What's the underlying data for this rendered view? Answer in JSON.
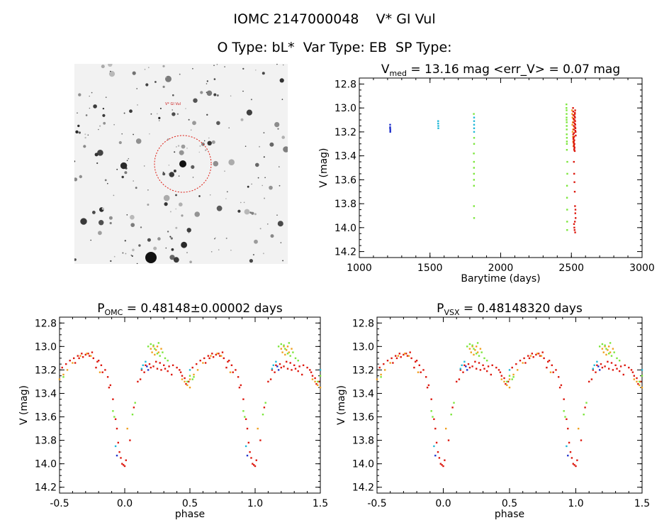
{
  "header": {
    "title_line1": "IOMC 2147000048    V* GI Vul",
    "title_line2": "O Type: bL*  Var Type: EB  SP Type:"
  },
  "colors": {
    "blue": "#2233cc",
    "cyan": "#22b8d8",
    "green": "#7ce63c",
    "orange": "#f0a020",
    "red": "#dd1a10"
  },
  "skymap": {
    "target_label": "V* GI Vul",
    "marker_color": "#dd1a10"
  },
  "chart_data": [
    {
      "type": "scatter",
      "title_main": "V",
      "title_sub": "med",
      "title_rest": " = 13.16 mag <err_V> = 0.07 mag",
      "xlabel": "Barytime (days)",
      "ylabel": "V (mag)",
      "xlim": [
        1000,
        3000
      ],
      "ylim": [
        14.25,
        12.75
      ],
      "xticks": [
        1000,
        1500,
        2000,
        2500,
        3000
      ],
      "xtick_labels": [
        "1000",
        "1500",
        "2000",
        "2500",
        "3000"
      ],
      "yticks": [
        12.8,
        13.0,
        13.2,
        13.4,
        13.6,
        13.8,
        14.0,
        14.2
      ],
      "ytick_labels": [
        "12.8",
        "13.0",
        "13.2",
        "13.4",
        "13.6",
        "13.8",
        "14.0",
        "14.2"
      ],
      "series": [
        {
          "color": "blue",
          "x": [
            1218,
            1218,
            1218,
            1219,
            1219,
            1219
          ],
          "y": [
            13.14,
            13.16,
            13.17,
            13.18,
            13.19,
            13.2
          ]
        },
        {
          "color": "cyan",
          "x": [
            1558,
            1558,
            1559,
            1559,
            1812,
            1812,
            1812,
            1812,
            1812
          ],
          "y": [
            13.11,
            13.13,
            13.15,
            13.17,
            13.08,
            13.11,
            13.14,
            13.17,
            13.2
          ]
        },
        {
          "color": "green",
          "x": [
            1810,
            1810,
            1811,
            1811,
            1811,
            1811,
            1811,
            1811,
            1812,
            1812,
            1812,
            2465,
            2465,
            2466,
            2466,
            2466,
            2466,
            2467,
            2467,
            2467,
            2467,
            2468,
            2468,
            2468,
            2468,
            2469,
            2469,
            2470,
            2470,
            2470,
            2471,
            2471
          ],
          "y": [
            13.05,
            13.38,
            13.45,
            13.5,
            13.55,
            13.6,
            13.65,
            13.82,
            13.92,
            13.25,
            13.3,
            12.97,
            13.0,
            13.02,
            13.05,
            13.08,
            13.1,
            13.12,
            13.15,
            13.18,
            13.22,
            13.25,
            13.28,
            13.3,
            13.35,
            13.65,
            13.75,
            13.85,
            13.95,
            14.02,
            13.45,
            13.55
          ]
        },
        {
          "color": "orange",
          "x": [
            2505,
            2506,
            2508,
            2510,
            2512,
            2514,
            2516,
            2518,
            2507,
            2509,
            2511,
            2513,
            2515,
            2517,
            2519,
            2521
          ],
          "y": [
            13.02,
            13.05,
            13.08,
            13.12,
            13.18,
            13.22,
            13.26,
            13.3,
            13.14,
            13.2,
            13.24,
            13.28,
            13.32,
            13.1,
            13.06,
            13.16
          ]
        },
        {
          "color": "red",
          "x": [
            2512,
            2513,
            2514,
            2515,
            2516,
            2517,
            2518,
            2519,
            2520,
            2521,
            2522,
            2523,
            2524,
            2525,
            2526,
            2527,
            2528,
            2529,
            2530,
            2531,
            2514,
            2516,
            2518,
            2520,
            2522,
            2524,
            2526,
            2528,
            2513,
            2515,
            2517,
            2519,
            2521,
            2523,
            2525,
            2527,
            2529,
            2518,
            2520,
            2522,
            2524,
            2526,
            2528,
            2530,
            2519,
            2521,
            2523,
            2525,
            2527,
            2529
          ],
          "y": [
            13.0,
            13.03,
            13.06,
            13.09,
            13.12,
            13.15,
            13.18,
            13.21,
            13.24,
            13.27,
            13.3,
            13.33,
            13.36,
            13.05,
            13.08,
            13.11,
            13.14,
            13.17,
            13.2,
            13.23,
            13.26,
            13.29,
            13.32,
            13.35,
            13.1,
            13.13,
            13.16,
            13.19,
            13.22,
            13.25,
            13.28,
            13.31,
            13.34,
            13.07,
            13.04,
            13.02,
            13.2,
            13.45,
            13.55,
            13.62,
            13.7,
            13.82,
            13.88,
            13.92,
            13.97,
            14.0,
            14.02,
            13.95,
            14.04,
            13.85
          ]
        }
      ]
    },
    {
      "type": "scatter",
      "title_main": "P",
      "title_sub": "OMC",
      "title_rest": " = 0.48148±0.00002 days",
      "xlabel": "phase",
      "ylabel": "V (mag)",
      "xlim": [
        -0.5,
        1.5
      ],
      "ylim": [
        14.25,
        12.75
      ],
      "xticks": [
        -0.5,
        0.0,
        0.5,
        1.0,
        1.5
      ],
      "xtick_labels": [
        "-0.5",
        "0.0",
        "0.5",
        "1.0",
        "1.5"
      ],
      "yticks": [
        12.8,
        13.0,
        13.2,
        13.4,
        13.6,
        13.8,
        14.0,
        14.2
      ],
      "ytick_labels": [
        "12.8",
        "13.0",
        "13.2",
        "13.4",
        "13.6",
        "13.8",
        "14.0",
        "14.2"
      ],
      "phase_points": [
        {
          "color": "red",
          "phase": [
            -0.42,
            -0.39,
            -0.36,
            -0.33,
            -0.3,
            -0.27,
            -0.24,
            -0.21,
            -0.18,
            -0.15,
            -0.13,
            -0.11,
            -0.09,
            -0.07,
            -0.05,
            -0.03,
            -0.01,
            0.01,
            0.04,
            0.07,
            0.1,
            0.13,
            0.16,
            0.19,
            0.22,
            0.25,
            0.28,
            0.31,
            0.34,
            0.37,
            0.4,
            0.43,
            0.46,
            0.49,
            -0.45,
            -0.48,
            -0.35,
            -0.25,
            -0.2,
            -0.28,
            -0.32,
            -0.38,
            -0.22,
            -0.17,
            0.12,
            0.15,
            0.27,
            0.33,
            0.36,
            0.42,
            0.47,
            0.44,
            -0.12,
            -0.06,
            -0.04,
            -0.02,
            0.0,
            0.2,
            0.24,
            0.3
          ],
          "mag": [
            13.12,
            13.1,
            13.08,
            13.06,
            13.07,
            13.08,
            13.1,
            13.13,
            13.16,
            13.2,
            13.26,
            13.33,
            13.45,
            13.62,
            13.82,
            13.95,
            14.01,
            13.97,
            13.8,
            13.52,
            13.3,
            13.2,
            13.16,
            13.15,
            13.17,
            13.19,
            13.2,
            13.19,
            13.17,
            13.16,
            13.18,
            13.22,
            13.27,
            13.3,
            13.15,
            13.18,
            13.1,
            13.05,
            13.12,
            13.06,
            13.09,
            13.14,
            13.18,
            13.22,
            13.28,
            13.22,
            13.14,
            13.21,
            13.24,
            13.2,
            13.32,
            13.25,
            13.35,
            13.7,
            13.9,
            14.0,
            14.02,
            13.18,
            13.13,
            13.16
          ]
        },
        {
          "color": "orange",
          "phase": [
            -0.44,
            -0.4,
            -0.34,
            -0.29,
            -0.26,
            -0.19,
            0.2,
            0.22,
            0.24,
            0.26,
            0.28,
            0.21,
            0.23,
            0.25,
            0.46,
            0.48,
            0.5,
            0.44,
            -0.47,
            -0.5,
            0.02
          ],
          "mag": [
            13.2,
            13.14,
            13.08,
            13.06,
            13.08,
            13.22,
            13.02,
            13.0,
            13.03,
            13.05,
            13.02,
            13.05,
            13.07,
            13.0,
            13.3,
            13.33,
            13.35,
            13.28,
            13.24,
            13.28,
            13.7
          ]
        },
        {
          "color": "green",
          "phase": [
            0.18,
            0.2,
            0.23,
            0.26,
            0.29,
            0.31,
            0.33,
            0.27,
            0.22,
            -0.09,
            -0.08,
            0.06,
            0.08,
            0.5,
            0.48,
            0.52,
            -0.47,
            0.25
          ],
          "mag": [
            13.0,
            12.98,
            13.02,
            12.97,
            13.05,
            13.1,
            13.12,
            13.08,
            12.99,
            13.55,
            13.6,
            13.58,
            13.48,
            13.25,
            13.3,
            13.28,
            13.26,
            13.06
          ]
        },
        {
          "color": "cyan",
          "phase": [
            0.14,
            0.16,
            -0.07,
            0.5,
            0.13
          ],
          "mag": [
            13.16,
            13.13,
            13.85,
            13.2,
            13.19
          ]
        },
        {
          "color": "blue",
          "phase": [
            0.17,
            0.18,
            -0.06
          ],
          "mag": [
            13.17,
            13.2,
            13.93
          ]
        }
      ]
    },
    {
      "type": "scatter",
      "title_main": "P",
      "title_sub": "VSX",
      "title_rest": " = 0.48148320 days",
      "xlabel": "phase",
      "ylabel": "V (mag)",
      "xlim": [
        -0.5,
        1.5
      ],
      "ylim": [
        14.25,
        12.75
      ],
      "xticks": [
        -0.5,
        0.0,
        0.5,
        1.0,
        1.5
      ],
      "xtick_labels": [
        "-0.5",
        "0.0",
        "0.5",
        "1.0",
        "1.5"
      ],
      "yticks": [
        12.8,
        13.0,
        13.2,
        13.4,
        13.6,
        13.8,
        14.0,
        14.2
      ],
      "ytick_labels": [
        "12.8",
        "13.0",
        "13.2",
        "13.4",
        "13.6",
        "13.8",
        "14.0",
        "14.2"
      ],
      "phase_points": [
        {
          "color": "red",
          "phase": [
            -0.42,
            -0.39,
            -0.36,
            -0.33,
            -0.3,
            -0.27,
            -0.24,
            -0.21,
            -0.18,
            -0.15,
            -0.13,
            -0.11,
            -0.09,
            -0.07,
            -0.05,
            -0.03,
            -0.01,
            0.01,
            0.04,
            0.07,
            0.1,
            0.13,
            0.16,
            0.19,
            0.22,
            0.25,
            0.28,
            0.31,
            0.34,
            0.37,
            0.4,
            0.43,
            0.46,
            0.49,
            -0.45,
            -0.48,
            -0.35,
            -0.25,
            -0.2,
            -0.28,
            -0.32,
            -0.38,
            -0.22,
            -0.17,
            0.12,
            0.15,
            0.27,
            0.33,
            0.36,
            0.42,
            0.47,
            0.44,
            -0.12,
            -0.06,
            -0.04,
            -0.02,
            0.0,
            0.2,
            0.24,
            0.3
          ],
          "mag": [
            13.12,
            13.1,
            13.08,
            13.06,
            13.07,
            13.08,
            13.1,
            13.13,
            13.16,
            13.2,
            13.26,
            13.33,
            13.45,
            13.62,
            13.82,
            13.95,
            14.01,
            13.97,
            13.8,
            13.52,
            13.3,
            13.2,
            13.16,
            13.15,
            13.17,
            13.19,
            13.2,
            13.19,
            13.17,
            13.16,
            13.18,
            13.22,
            13.27,
            13.3,
            13.15,
            13.18,
            13.1,
            13.05,
            13.12,
            13.06,
            13.09,
            13.14,
            13.18,
            13.22,
            13.28,
            13.22,
            13.14,
            13.21,
            13.24,
            13.2,
            13.32,
            13.25,
            13.35,
            13.7,
            13.9,
            14.0,
            14.02,
            13.18,
            13.13,
            13.16
          ]
        },
        {
          "color": "orange",
          "phase": [
            -0.44,
            -0.4,
            -0.34,
            -0.29,
            -0.26,
            -0.19,
            0.2,
            0.22,
            0.24,
            0.26,
            0.28,
            0.21,
            0.23,
            0.25,
            0.46,
            0.48,
            0.5,
            0.44,
            -0.47,
            -0.5,
            0.02
          ],
          "mag": [
            13.2,
            13.14,
            13.08,
            13.06,
            13.08,
            13.22,
            13.02,
            13.0,
            13.03,
            13.05,
            13.02,
            13.05,
            13.07,
            13.0,
            13.3,
            13.33,
            13.35,
            13.28,
            13.24,
            13.28,
            13.7
          ]
        },
        {
          "color": "green",
          "phase": [
            0.18,
            0.2,
            0.23,
            0.26,
            0.29,
            0.31,
            0.33,
            0.27,
            0.22,
            -0.09,
            -0.08,
            0.06,
            0.08,
            0.5,
            0.48,
            0.52,
            -0.47,
            0.25
          ],
          "mag": [
            13.0,
            12.98,
            13.02,
            12.97,
            13.05,
            13.1,
            13.12,
            13.08,
            12.99,
            13.55,
            13.6,
            13.58,
            13.48,
            13.25,
            13.3,
            13.28,
            13.26,
            13.06
          ]
        },
        {
          "color": "cyan",
          "phase": [
            0.14,
            0.16,
            -0.07,
            0.5,
            0.13
          ],
          "mag": [
            13.16,
            13.13,
            13.85,
            13.2,
            13.19
          ]
        },
        {
          "color": "blue",
          "phase": [
            0.17,
            0.18,
            -0.06
          ],
          "mag": [
            13.17,
            13.2,
            13.93
          ]
        }
      ]
    }
  ]
}
